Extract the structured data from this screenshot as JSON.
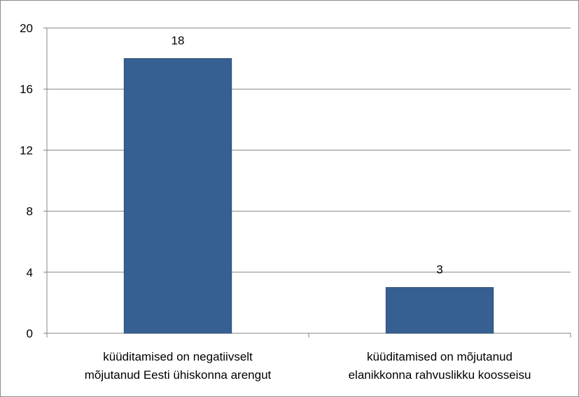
{
  "chart_data": {
    "type": "bar",
    "title": "",
    "xlabel": "",
    "ylabel": "",
    "categories": [
      [
        "küüditamised on negatiivselt",
        "mõjutanud Eesti ühiskonna arengut"
      ],
      [
        "küüditamised on mõjutanud",
        "elanikkonna rahvuslikku koosseisu"
      ]
    ],
    "values": [
      18,
      3
    ],
    "data_labels": [
      "18",
      "3"
    ],
    "ylim": [
      0,
      20
    ],
    "yticks": [
      0,
      4,
      8,
      12,
      16,
      20
    ],
    "ytick_labels": [
      "0",
      "4",
      "8",
      "12",
      "16",
      "20"
    ],
    "grid": true,
    "legend": "none",
    "colors": {
      "bar": "#376092",
      "bar_edge": "#2c4d74",
      "grid": "#868686",
      "axis": "#868686"
    }
  }
}
